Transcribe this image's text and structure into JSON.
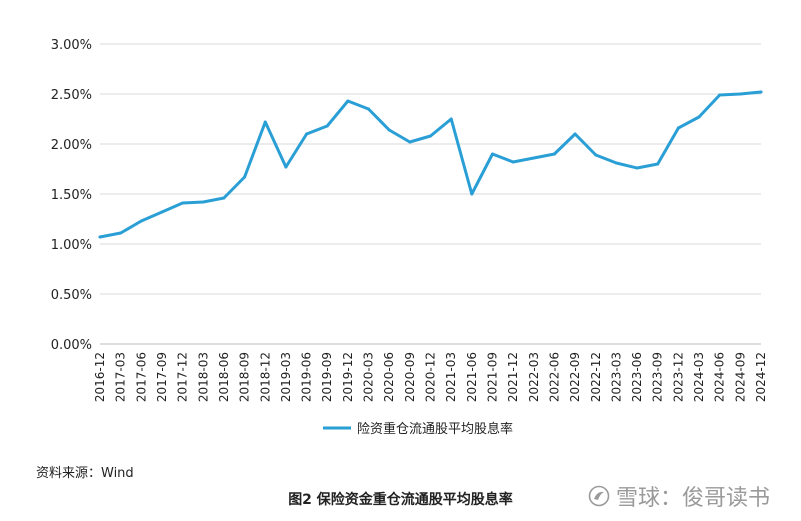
{
  "chart_data": {
    "type": "line",
    "x": [
      "2016-12",
      "2017-03",
      "2017-06",
      "2017-09",
      "2017-12",
      "2018-03",
      "2018-06",
      "2018-09",
      "2018-12",
      "2019-03",
      "2019-06",
      "2019-09",
      "2019-12",
      "2020-03",
      "2020-06",
      "2020-09",
      "2020-12",
      "2021-03",
      "2021-06",
      "2021-09",
      "2021-12",
      "2022-03",
      "2022-06",
      "2022-09",
      "2022-12",
      "2023-03",
      "2023-06",
      "2023-09",
      "2023-12",
      "2024-03",
      "2024-06",
      "2024-09",
      "2024-12"
    ],
    "series": [
      {
        "name": "险资重仓流通股平均股息率",
        "color": "#2a9fd6",
        "values": [
          1.07,
          1.11,
          1.23,
          1.32,
          1.41,
          1.42,
          1.46,
          1.67,
          2.22,
          1.77,
          2.1,
          2.18,
          2.43,
          2.35,
          2.14,
          2.02,
          2.08,
          2.25,
          1.5,
          1.9,
          1.82,
          1.86,
          1.9,
          2.1,
          1.89,
          1.81,
          1.76,
          1.8,
          2.16,
          2.27,
          2.49,
          2.5,
          2.52
        ]
      }
    ],
    "yticks": [
      "0.00%",
      "0.50%",
      "1.00%",
      "1.50%",
      "2.00%",
      "2.50%",
      "3.00%"
    ],
    "ylim": [
      0,
      3.0
    ],
    "grid": true,
    "legend_position": "bottom"
  },
  "source_note": "资料来源：Wind",
  "figure_caption": "图2  保险资金重仓流通股平均股息率",
  "watermark": {
    "text": "雪球：俊哥读书",
    "icon": "snowball-logo-icon"
  }
}
